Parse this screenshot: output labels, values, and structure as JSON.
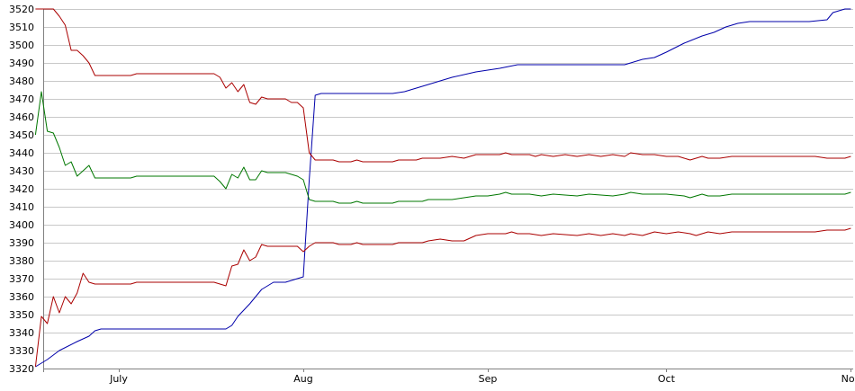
{
  "chart_data": {
    "type": "line",
    "title": "",
    "xlabel": "",
    "ylabel": "",
    "ylim": [
      3320,
      3520
    ],
    "y_ticks": [
      3320,
      3330,
      3340,
      3350,
      3360,
      3370,
      3380,
      3390,
      3400,
      3410,
      3420,
      3430,
      3440,
      3450,
      3460,
      3470,
      3480,
      3490,
      3500,
      3510,
      3520
    ],
    "x_range": [
      "2016-06-17",
      "2016-11-01"
    ],
    "x_ticks": [
      {
        "date": "2016-07-01",
        "label": "July"
      },
      {
        "date": "2016-08-01",
        "label": "Aug"
      },
      {
        "date": "2016-09-01",
        "label": "Sep"
      },
      {
        "date": "2016-10-01",
        "label": "Oct"
      },
      {
        "date": "2016-11-01",
        "label": "Nov"
      }
    ],
    "grid": true,
    "legend": "none",
    "series": [
      {
        "color": "#0000aa",
        "points": [
          [
            "2016-06-17",
            3321
          ],
          [
            "2016-06-19",
            3325
          ],
          [
            "2016-06-21",
            3330
          ],
          [
            "2016-06-24",
            3335
          ],
          [
            "2016-06-26",
            3338
          ],
          [
            "2016-06-27",
            3341
          ],
          [
            "2016-06-28",
            3342
          ],
          [
            "2016-07-05",
            3342
          ],
          [
            "2016-07-12",
            3342
          ],
          [
            "2016-07-19",
            3342
          ],
          [
            "2016-07-20",
            3344
          ],
          [
            "2016-07-21",
            3349
          ],
          [
            "2016-07-23",
            3356
          ],
          [
            "2016-07-25",
            3364
          ],
          [
            "2016-07-27",
            3368
          ],
          [
            "2016-07-29",
            3368
          ],
          [
            "2016-07-30",
            3369
          ],
          [
            "2016-08-01",
            3371
          ],
          [
            "2016-08-02",
            3425
          ],
          [
            "2016-08-03",
            3472
          ],
          [
            "2016-08-04",
            3473
          ],
          [
            "2016-08-10",
            3473
          ],
          [
            "2016-08-16",
            3473
          ],
          [
            "2016-08-18",
            3474
          ],
          [
            "2016-08-22",
            3478
          ],
          [
            "2016-08-26",
            3482
          ],
          [
            "2016-08-30",
            3485
          ],
          [
            "2016-09-01",
            3486
          ],
          [
            "2016-09-03",
            3487
          ],
          [
            "2016-09-06",
            3489
          ],
          [
            "2016-09-13",
            3489
          ],
          [
            "2016-09-20",
            3489
          ],
          [
            "2016-09-24",
            3489
          ],
          [
            "2016-09-27",
            3492
          ],
          [
            "2016-09-29",
            3493
          ],
          [
            "2016-10-01",
            3496
          ],
          [
            "2016-10-04",
            3501
          ],
          [
            "2016-10-07",
            3505
          ],
          [
            "2016-10-09",
            3507
          ],
          [
            "2016-10-11",
            3510
          ],
          [
            "2016-10-13",
            3512
          ],
          [
            "2016-10-15",
            3513
          ],
          [
            "2016-10-20",
            3513
          ],
          [
            "2016-10-25",
            3513
          ],
          [
            "2016-10-28",
            3514
          ],
          [
            "2016-10-29",
            3518
          ],
          [
            "2016-10-31",
            3520
          ],
          [
            "2016-11-01",
            3520
          ]
        ]
      },
      {
        "color": "#aa0000",
        "points": [
          [
            "2016-06-17",
            3520
          ],
          [
            "2016-06-19",
            3520
          ],
          [
            "2016-06-20",
            3520
          ],
          [
            "2016-06-21",
            3516
          ],
          [
            "2016-06-22",
            3511
          ],
          [
            "2016-06-23",
            3497
          ],
          [
            "2016-06-24",
            3497
          ],
          [
            "2016-06-25",
            3494
          ],
          [
            "2016-06-26",
            3490
          ],
          [
            "2016-06-27",
            3483
          ],
          [
            "2016-07-03",
            3483
          ],
          [
            "2016-07-04",
            3484
          ],
          [
            "2016-07-10",
            3484
          ],
          [
            "2016-07-17",
            3484
          ],
          [
            "2016-07-18",
            3482
          ],
          [
            "2016-07-19",
            3476
          ],
          [
            "2016-07-20",
            3479
          ],
          [
            "2016-07-21",
            3474
          ],
          [
            "2016-07-22",
            3478
          ],
          [
            "2016-07-23",
            3468
          ],
          [
            "2016-07-24",
            3467
          ],
          [
            "2016-07-25",
            3471
          ],
          [
            "2016-07-26",
            3470
          ],
          [
            "2016-07-29",
            3470
          ],
          [
            "2016-07-30",
            3468
          ],
          [
            "2016-07-31",
            3468
          ],
          [
            "2016-08-01",
            3465
          ],
          [
            "2016-08-02",
            3440
          ],
          [
            "2016-08-03",
            3436
          ],
          [
            "2016-08-06",
            3436
          ],
          [
            "2016-08-07",
            3435
          ],
          [
            "2016-08-09",
            3435
          ],
          [
            "2016-08-10",
            3436
          ],
          [
            "2016-08-11",
            3435
          ],
          [
            "2016-08-13",
            3435
          ],
          [
            "2016-08-16",
            3435
          ],
          [
            "2016-08-17",
            3436
          ],
          [
            "2016-08-20",
            3436
          ],
          [
            "2016-08-21",
            3437
          ],
          [
            "2016-08-24",
            3437
          ],
          [
            "2016-08-26",
            3438
          ],
          [
            "2016-08-28",
            3437
          ],
          [
            "2016-08-30",
            3439
          ],
          [
            "2016-09-01",
            3439
          ],
          [
            "2016-09-03",
            3439
          ],
          [
            "2016-09-04",
            3440
          ],
          [
            "2016-09-05",
            3439
          ],
          [
            "2016-09-08",
            3439
          ],
          [
            "2016-09-09",
            3438
          ],
          [
            "2016-09-10",
            3439
          ],
          [
            "2016-09-12",
            3438
          ],
          [
            "2016-09-14",
            3439
          ],
          [
            "2016-09-16",
            3438
          ],
          [
            "2016-09-18",
            3439
          ],
          [
            "2016-09-20",
            3438
          ],
          [
            "2016-09-22",
            3439
          ],
          [
            "2016-09-24",
            3438
          ],
          [
            "2016-09-25",
            3440
          ],
          [
            "2016-09-27",
            3439
          ],
          [
            "2016-09-29",
            3439
          ],
          [
            "2016-10-01",
            3438
          ],
          [
            "2016-10-03",
            3438
          ],
          [
            "2016-10-04",
            3437
          ],
          [
            "2016-10-05",
            3436
          ],
          [
            "2016-10-07",
            3438
          ],
          [
            "2016-10-08",
            3437
          ],
          [
            "2016-10-10",
            3437
          ],
          [
            "2016-10-12",
            3438
          ],
          [
            "2016-10-20",
            3438
          ],
          [
            "2016-10-26",
            3438
          ],
          [
            "2016-10-28",
            3437
          ],
          [
            "2016-10-31",
            3437
          ],
          [
            "2016-11-01",
            3438
          ]
        ]
      },
      {
        "color": "#007700",
        "points": [
          [
            "2016-06-17",
            3450
          ],
          [
            "2016-06-18",
            3474
          ],
          [
            "2016-06-19",
            3452
          ],
          [
            "2016-06-20",
            3451
          ],
          [
            "2016-06-21",
            3443
          ],
          [
            "2016-06-22",
            3433
          ],
          [
            "2016-06-23",
            3435
          ],
          [
            "2016-06-24",
            3427
          ],
          [
            "2016-06-26",
            3433
          ],
          [
            "2016-06-27",
            3426
          ],
          [
            "2016-07-03",
            3426
          ],
          [
            "2016-07-04",
            3427
          ],
          [
            "2016-07-10",
            3427
          ],
          [
            "2016-07-17",
            3427
          ],
          [
            "2016-07-18",
            3424
          ],
          [
            "2016-07-19",
            3420
          ],
          [
            "2016-07-20",
            3428
          ],
          [
            "2016-07-21",
            3426
          ],
          [
            "2016-07-22",
            3432
          ],
          [
            "2016-07-23",
            3425
          ],
          [
            "2016-07-24",
            3425
          ],
          [
            "2016-07-25",
            3430
          ],
          [
            "2016-07-26",
            3429
          ],
          [
            "2016-07-29",
            3429
          ],
          [
            "2016-07-30",
            3428
          ],
          [
            "2016-07-31",
            3427
          ],
          [
            "2016-08-01",
            3425
          ],
          [
            "2016-08-02",
            3414
          ],
          [
            "2016-08-03",
            3413
          ],
          [
            "2016-08-06",
            3413
          ],
          [
            "2016-08-07",
            3412
          ],
          [
            "2016-08-09",
            3412
          ],
          [
            "2016-08-10",
            3413
          ],
          [
            "2016-08-11",
            3412
          ],
          [
            "2016-08-16",
            3412
          ],
          [
            "2016-08-17",
            3413
          ],
          [
            "2016-08-21",
            3413
          ],
          [
            "2016-08-22",
            3414
          ],
          [
            "2016-08-26",
            3414
          ],
          [
            "2016-08-28",
            3415
          ],
          [
            "2016-08-30",
            3416
          ],
          [
            "2016-09-01",
            3416
          ],
          [
            "2016-09-03",
            3417
          ],
          [
            "2016-09-04",
            3418
          ],
          [
            "2016-09-05",
            3417
          ],
          [
            "2016-09-08",
            3417
          ],
          [
            "2016-09-10",
            3416
          ],
          [
            "2016-09-12",
            3417
          ],
          [
            "2016-09-16",
            3416
          ],
          [
            "2016-09-18",
            3417
          ],
          [
            "2016-09-22",
            3416
          ],
          [
            "2016-09-24",
            3417
          ],
          [
            "2016-09-25",
            3418
          ],
          [
            "2016-09-27",
            3417
          ],
          [
            "2016-10-01",
            3417
          ],
          [
            "2016-10-04",
            3416
          ],
          [
            "2016-10-05",
            3415
          ],
          [
            "2016-10-07",
            3417
          ],
          [
            "2016-10-08",
            3416
          ],
          [
            "2016-10-10",
            3416
          ],
          [
            "2016-10-12",
            3417
          ],
          [
            "2016-10-20",
            3417
          ],
          [
            "2016-10-31",
            3417
          ],
          [
            "2016-11-01",
            3418
          ]
        ]
      },
      {
        "color": "#aa0000",
        "points": [
          [
            "2016-06-17",
            3321
          ],
          [
            "2016-06-18",
            3349
          ],
          [
            "2016-06-19",
            3345
          ],
          [
            "2016-06-20",
            3360
          ],
          [
            "2016-06-21",
            3351
          ],
          [
            "2016-06-22",
            3360
          ],
          [
            "2016-06-23",
            3356
          ],
          [
            "2016-06-24",
            3362
          ],
          [
            "2016-06-25",
            3373
          ],
          [
            "2016-06-26",
            3368
          ],
          [
            "2016-06-27",
            3367
          ],
          [
            "2016-07-03",
            3367
          ],
          [
            "2016-07-04",
            3368
          ],
          [
            "2016-07-10",
            3368
          ],
          [
            "2016-07-17",
            3368
          ],
          [
            "2016-07-18",
            3367
          ],
          [
            "2016-07-19",
            3366
          ],
          [
            "2016-07-20",
            3377
          ],
          [
            "2016-07-21",
            3378
          ],
          [
            "2016-07-22",
            3386
          ],
          [
            "2016-07-23",
            3380
          ],
          [
            "2016-07-24",
            3382
          ],
          [
            "2016-07-25",
            3389
          ],
          [
            "2016-07-26",
            3388
          ],
          [
            "2016-07-31",
            3388
          ],
          [
            "2016-08-01",
            3385
          ],
          [
            "2016-08-02",
            3388
          ],
          [
            "2016-08-03",
            3390
          ],
          [
            "2016-08-06",
            3390
          ],
          [
            "2016-08-07",
            3389
          ],
          [
            "2016-08-09",
            3389
          ],
          [
            "2016-08-10",
            3390
          ],
          [
            "2016-08-11",
            3389
          ],
          [
            "2016-08-16",
            3389
          ],
          [
            "2016-08-17",
            3390
          ],
          [
            "2016-08-21",
            3390
          ],
          [
            "2016-08-22",
            3391
          ],
          [
            "2016-08-24",
            3392
          ],
          [
            "2016-08-26",
            3391
          ],
          [
            "2016-08-28",
            3391
          ],
          [
            "2016-08-30",
            3394
          ],
          [
            "2016-09-01",
            3395
          ],
          [
            "2016-09-04",
            3395
          ],
          [
            "2016-09-05",
            3396
          ],
          [
            "2016-09-06",
            3395
          ],
          [
            "2016-09-08",
            3395
          ],
          [
            "2016-09-10",
            3394
          ],
          [
            "2016-09-12",
            3395
          ],
          [
            "2016-09-16",
            3394
          ],
          [
            "2016-09-18",
            3395
          ],
          [
            "2016-09-20",
            3394
          ],
          [
            "2016-09-22",
            3395
          ],
          [
            "2016-09-24",
            3394
          ],
          [
            "2016-09-25",
            3395
          ],
          [
            "2016-09-27",
            3394
          ],
          [
            "2016-09-29",
            3396
          ],
          [
            "2016-10-01",
            3395
          ],
          [
            "2016-10-03",
            3396
          ],
          [
            "2016-10-05",
            3395
          ],
          [
            "2016-10-06",
            3394
          ],
          [
            "2016-10-08",
            3396
          ],
          [
            "2016-10-10",
            3395
          ],
          [
            "2016-10-12",
            3396
          ],
          [
            "2016-10-20",
            3396
          ],
          [
            "2016-10-26",
            3396
          ],
          [
            "2016-10-28",
            3397
          ],
          [
            "2016-10-31",
            3397
          ],
          [
            "2016-11-01",
            3398
          ]
        ]
      }
    ]
  }
}
